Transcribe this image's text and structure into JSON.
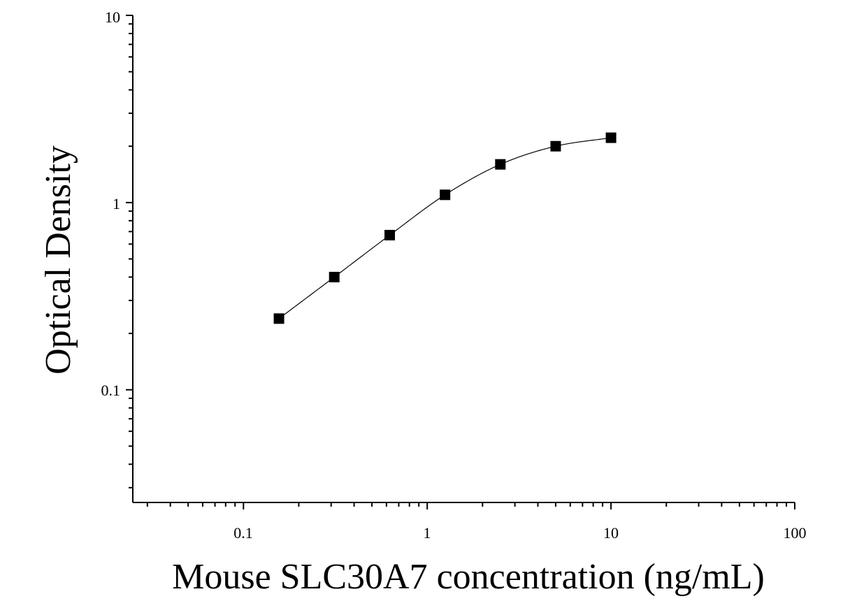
{
  "chart_data": {
    "type": "scatter",
    "title": "",
    "xlabel": "Mouse SLC30A7 concentration (ng/mL)",
    "ylabel": "Optical Density",
    "xscale": "log",
    "yscale": "log",
    "xlim": [
      0.025,
      100
    ],
    "ylim": [
      0.025,
      10
    ],
    "x_tick_labels": [
      "0.1",
      "1",
      "10",
      "100"
    ],
    "y_tick_labels": [
      "0.1",
      "1",
      "10"
    ],
    "grid": false,
    "legend": "none",
    "series": [
      {
        "marker": "square",
        "color": "#000000",
        "x": [
          0.156,
          0.312,
          0.625,
          1.25,
          2.5,
          5,
          10
        ],
        "y": [
          0.24,
          0.4,
          0.67,
          1.1,
          1.6,
          2.0,
          2.22
        ]
      }
    ],
    "fit_curve": {
      "type": "4PL",
      "color": "#000000"
    }
  }
}
